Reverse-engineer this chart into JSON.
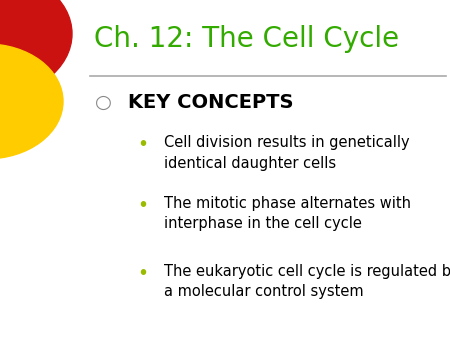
{
  "title": "Ch. 12: The Cell Cycle",
  "title_color": "#33aa00",
  "title_fontsize": 20,
  "background_color": "#ffffff",
  "section_header": "KEY CONCEPTS",
  "section_header_color": "#000000",
  "section_header_fontsize": 14,
  "bullet_color": "#000000",
  "bullet_fontsize": 10.5,
  "bullet_marker_color": "#99bb00",
  "section_marker_color": "#888888",
  "bullets": [
    "Cell division results in genetically\nidentical daughter cells",
    "The mitotic phase alternates with\ninterphase in the cell cycle",
    "The eukaryotic cell cycle is regulated by\na molecular control system"
  ],
  "line_color": "#aaaaaa",
  "circle_red_color": "#cc1111",
  "circle_yellow_color": "#ffcc00",
  "font_family": "DejaVu Sans"
}
